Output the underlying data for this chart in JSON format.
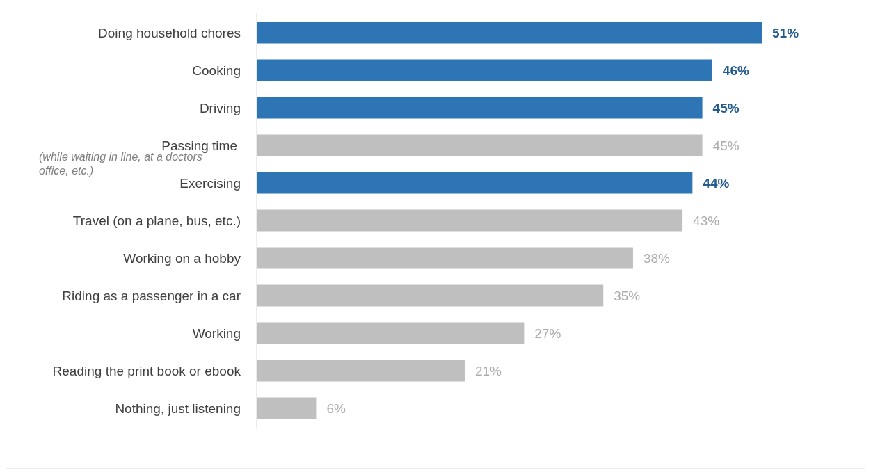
{
  "chart_data": {
    "type": "bar",
    "orientation": "horizontal",
    "categories": [
      "Doing household chores",
      "Cooking",
      "Driving",
      "Passing time (while waiting in line, at a doctors office, etc.)",
      "Exercising",
      "Travel (on a plane, bus, etc.)",
      "Working on a hobby",
      "Riding as a passenger in a car",
      "Working",
      "Reading the print book or ebook",
      "Nothing, just listening"
    ],
    "values": [
      51,
      46,
      45,
      45,
      44,
      43,
      38,
      35,
      27,
      21,
      6
    ],
    "colors": [
      "#2e75b6",
      "#2e75b6",
      "#2e75b6",
      "#bfbfbf",
      "#2e75b6",
      "#bfbfbf",
      "#bfbfbf",
      "#bfbfbf",
      "#bfbfbf",
      "#bfbfbf",
      "#bfbfbf"
    ],
    "value_labels": [
      "51%",
      "46%",
      "45%",
      "45%",
      "44%",
      "43%",
      "38%",
      "35%",
      "27%",
      "21%",
      "6%"
    ]
  }
}
